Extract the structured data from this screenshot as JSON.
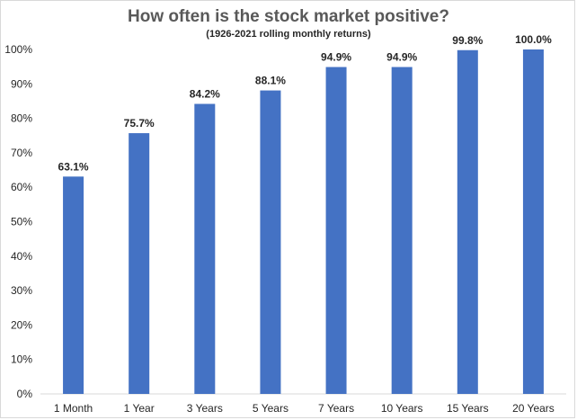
{
  "chart_data": {
    "type": "bar",
    "title": "How often is the stock market positive?",
    "subtitle": "(1926-2021 rolling monthly returns)",
    "categories": [
      "1 Month",
      "1 Year",
      "3 Years",
      "5 Years",
      "7 Years",
      "10 Years",
      "15 Years",
      "20 Years"
    ],
    "values": [
      63.1,
      75.7,
      84.2,
      88.1,
      94.9,
      94.9,
      99.8,
      100.0
    ],
    "data_labels": [
      "63.1%",
      "75.7%",
      "84.2%",
      "88.1%",
      "94.9%",
      "94.9%",
      "99.8%",
      "100.0%"
    ],
    "y_ticks": [
      "0%",
      "10%",
      "20%",
      "30%",
      "40%",
      "50%",
      "60%",
      "70%",
      "80%",
      "90%",
      "100%"
    ],
    "ylim": [
      0,
      100
    ],
    "xlabel": "",
    "ylabel": "",
    "bar_color": "#4472C4",
    "grid": false,
    "legend": "none"
  }
}
